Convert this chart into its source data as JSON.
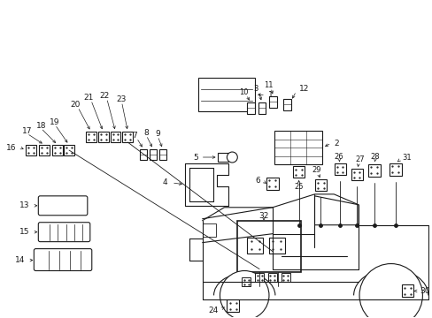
{
  "bg_color": "#ffffff",
  "line_color": "#1a1a1a",
  "fig_width": 4.89,
  "fig_height": 3.6,
  "dpi": 100,
  "xmax": 489,
  "ymax": 360
}
